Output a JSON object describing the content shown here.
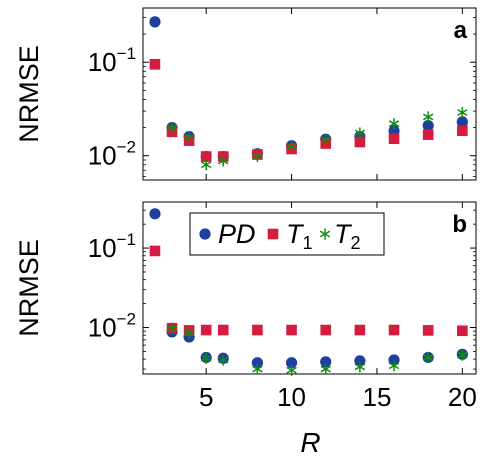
{
  "chart_data": [
    {
      "panel_label": "a",
      "type": "scatter",
      "ylabel": "NRMSE",
      "y_scale": "log",
      "ylim": [
        0.0055,
        0.38
      ],
      "xlim": [
        1.3,
        20.8
      ],
      "x_ticks": [],
      "y_ticks": [
        {
          "value": 0.1,
          "base": "10",
          "exp": "−1"
        },
        {
          "value": 0.01,
          "base": "10",
          "exp": "−2"
        }
      ],
      "legend": null,
      "series": [
        {
          "name": "PD",
          "marker": "circle",
          "color": "#1f3f9f",
          "x": [
            2,
            3,
            4,
            5,
            6,
            8,
            10,
            12,
            14,
            16,
            18,
            20
          ],
          "y": [
            0.27,
            0.02,
            0.016,
            0.0098,
            0.0098,
            0.0105,
            0.0128,
            0.015,
            0.016,
            0.0185,
            0.021,
            0.023
          ]
        },
        {
          "name": "T1",
          "marker": "square",
          "color": "#d51c3f",
          "x": [
            2,
            3,
            4,
            5,
            6,
            8,
            10,
            12,
            14,
            16,
            18,
            20
          ],
          "y": [
            0.095,
            0.018,
            0.0145,
            0.0098,
            0.0098,
            0.0103,
            0.0118,
            0.0135,
            0.014,
            0.0152,
            0.0168,
            0.0185
          ]
        },
        {
          "name": "T2",
          "marker": "asterisk",
          "color": "#118c11",
          "x": [
            3,
            4,
            5,
            6,
            8,
            10,
            12,
            14,
            16,
            18,
            20
          ],
          "y": [
            0.02,
            0.016,
            0.008,
            0.0088,
            0.0098,
            0.0125,
            0.015,
            0.0175,
            0.022,
            0.026,
            0.029
          ]
        }
      ]
    },
    {
      "panel_label": "b",
      "type": "scatter",
      "ylabel": "NRMSE",
      "xlabel": "R",
      "y_scale": "log",
      "ylim": [
        0.0026,
        0.38
      ],
      "xlim": [
        1.3,
        20.8
      ],
      "x_ticks": [
        {
          "value": 5,
          "label": "5"
        },
        {
          "value": 10,
          "label": "10"
        },
        {
          "value": 15,
          "label": "15"
        },
        {
          "value": 20,
          "label": "20"
        }
      ],
      "y_ticks": [
        {
          "value": 0.1,
          "base": "10",
          "exp": "−1"
        },
        {
          "value": 0.01,
          "base": "10",
          "exp": "−2"
        }
      ],
      "legend": {
        "placement": "top",
        "entries": [
          {
            "marker": "circle",
            "color": "#1f3f9f",
            "main": "PD",
            "sub": ""
          },
          {
            "marker": "square",
            "color": "#d51c3f",
            "main": "T",
            "sub": "1"
          },
          {
            "marker": "asterisk",
            "color": "#118c11",
            "main": "T",
            "sub": "2"
          }
        ]
      },
      "series": [
        {
          "name": "PD",
          "marker": "circle",
          "color": "#1f3f9f",
          "x": [
            2,
            3,
            4,
            5,
            6,
            8,
            10,
            12,
            14,
            16,
            18,
            20
          ],
          "y": [
            0.27,
            0.0088,
            0.0076,
            0.0042,
            0.0041,
            0.0036,
            0.0036,
            0.0037,
            0.0038,
            0.0039,
            0.0042,
            0.0046
          ]
        },
        {
          "name": "T1",
          "marker": "square",
          "color": "#d51c3f",
          "x": [
            2,
            3,
            4,
            5,
            6,
            8,
            10,
            12,
            14,
            16,
            18,
            20
          ],
          "y": [
            0.092,
            0.0098,
            0.0092,
            0.0093,
            0.0093,
            0.0093,
            0.0093,
            0.0093,
            0.0093,
            0.0093,
            0.0092,
            0.0091
          ]
        },
        {
          "name": "T2",
          "marker": "asterisk",
          "color": "#118c11",
          "x": [
            3,
            4,
            5,
            6,
            8,
            10,
            12,
            14,
            16,
            18,
            20
          ],
          "y": [
            0.0098,
            0.0085,
            0.0041,
            0.0039,
            0.003,
            0.0029,
            0.003,
            0.0032,
            0.0033,
            0.0042,
            0.0045
          ]
        }
      ]
    }
  ]
}
